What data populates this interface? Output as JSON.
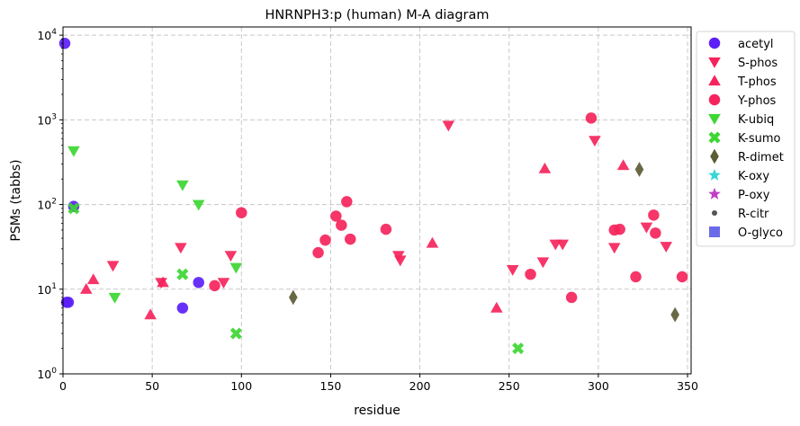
{
  "chart_data": {
    "type": "scatter",
    "title": "HNRNPH3:p (human) M-A diagram",
    "xlabel": "residue",
    "ylabel": "PSMs (tabbs)",
    "xlim": [
      0,
      352
    ],
    "ylim": [
      1,
      12500
    ],
    "y_scale": "log",
    "x_ticks": [
      "0",
      "50",
      "100",
      "150",
      "200",
      "250",
      "300",
      "350"
    ],
    "y_ticks": [
      "10^0",
      "10^1",
      "10^2",
      "10^3",
      "10^4"
    ],
    "grid": true,
    "legend_position": "outside-right",
    "series": [
      {
        "name": "acetyl",
        "marker": "circle",
        "color": "#5b1ff7",
        "points": [
          [
            1,
            8000
          ],
          [
            2,
            7
          ],
          [
            3,
            7
          ],
          [
            6,
            95
          ],
          [
            67,
            6
          ],
          [
            76,
            12
          ]
        ]
      },
      {
        "name": "S-phos",
        "marker": "triangle-down",
        "color": "#f5245c",
        "points": [
          [
            28,
            19
          ],
          [
            55,
            12
          ],
          [
            66,
            31
          ],
          [
            90,
            12
          ],
          [
            94,
            25
          ],
          [
            188,
            25
          ],
          [
            189,
            22
          ],
          [
            216,
            860
          ],
          [
            252,
            17
          ],
          [
            269,
            21
          ],
          [
            276,
            34
          ],
          [
            280,
            34
          ],
          [
            298,
            570
          ],
          [
            309,
            31
          ],
          [
            327,
            54
          ],
          [
            338,
            32
          ]
        ]
      },
      {
        "name": "T-phos",
        "marker": "triangle-up",
        "color": "#f5245c",
        "points": [
          [
            13,
            10
          ],
          [
            17,
            13
          ],
          [
            49,
            5
          ],
          [
            56,
            12
          ],
          [
            207,
            35
          ],
          [
            243,
            6
          ],
          [
            270,
            265
          ],
          [
            314,
            290
          ]
        ]
      },
      {
        "name": "Y-phos",
        "marker": "circle",
        "color": "#f5245c",
        "points": [
          [
            85,
            11
          ],
          [
            100,
            80
          ],
          [
            143,
            27
          ],
          [
            147,
            38
          ],
          [
            153,
            73
          ],
          [
            156,
            57
          ],
          [
            159,
            108
          ],
          [
            161,
            39
          ],
          [
            181,
            51
          ],
          [
            262,
            15
          ],
          [
            285,
            8
          ],
          [
            296,
            1050
          ],
          [
            309,
            50
          ],
          [
            312,
            51
          ],
          [
            321,
            14
          ],
          [
            331,
            75
          ],
          [
            332,
            46
          ],
          [
            347,
            14
          ]
        ]
      },
      {
        "name": "K-ubiq",
        "marker": "triangle-down",
        "color": "#3dd632",
        "points": [
          [
            6,
            430
          ],
          [
            29,
            8
          ],
          [
            67,
            170
          ],
          [
            76,
            100
          ],
          [
            97,
            18
          ]
        ]
      },
      {
        "name": "K-sumo",
        "marker": "x",
        "color": "#3dd632",
        "points": [
          [
            6,
            90
          ],
          [
            67,
            15
          ],
          [
            97,
            3
          ],
          [
            255,
            2
          ]
        ]
      },
      {
        "name": "R-dimet",
        "marker": "diamond",
        "color": "#5c5c36",
        "points": [
          [
            129,
            8
          ],
          [
            323,
            260
          ],
          [
            343,
            5
          ]
        ]
      },
      {
        "name": "K-oxy",
        "marker": "star",
        "color": "#36d6d6",
        "points": []
      },
      {
        "name": "P-oxy",
        "marker": "star",
        "color": "#c03ec8",
        "points": []
      },
      {
        "name": "R-citr",
        "marker": "small-circle",
        "color": "#555555",
        "points": []
      },
      {
        "name": "O-glyco",
        "marker": "square",
        "color": "#6b6bea",
        "points": []
      }
    ]
  }
}
